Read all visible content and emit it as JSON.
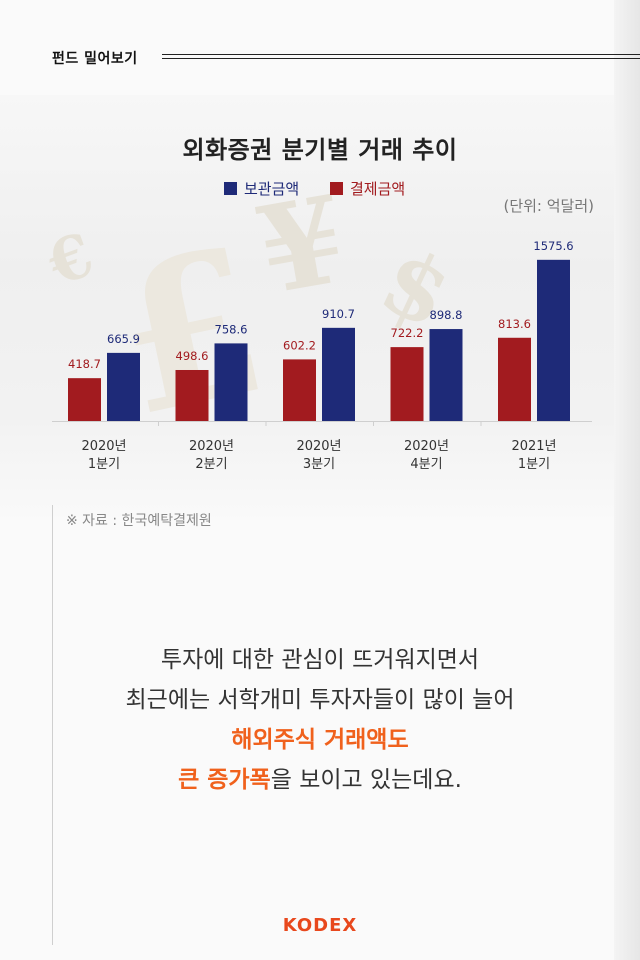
{
  "header": {
    "title": "펀드 밀어보기"
  },
  "chart_data": {
    "type": "bar",
    "title": "외화증권 분기별 거래 추이",
    "unit": "(단위: 억달러)",
    "categories": [
      "2020년\n1분기",
      "2020년\n2분기",
      "2020년\n3분기",
      "2020년\n4분기",
      "2021년\n1분기"
    ],
    "series": [
      {
        "name": "보관금액",
        "color": "#1e2a78",
        "values": [
          665.9,
          758.6,
          910.7,
          898.8,
          1575.6
        ],
        "labels": [
          "665.9",
          "758.6",
          "910.7",
          "898.8",
          "1575.6"
        ]
      },
      {
        "name": "결제금액",
        "color": "#a21b1f",
        "values": [
          418.7,
          498.6,
          602.2,
          722.2,
          813.6
        ],
        "labels": [
          "418.7",
          "498.6",
          "602.2",
          "722.2",
          "813.6"
        ]
      }
    ],
    "legend_position": "top-center",
    "grid": false
  },
  "source": "※ 자료 : 한국예탁결제원",
  "body": {
    "line1": "투자에 대한 관심이 뜨거워지면서",
    "line2": "최근에는 서학개미 투자자들이 많이 늘어",
    "line3_highlight": "해외주식 거래액도",
    "line4_highlight": "큰 증가폭",
    "line4_rest": "을 보이고 있는데요."
  },
  "brand": {
    "logo": "KODEX"
  }
}
